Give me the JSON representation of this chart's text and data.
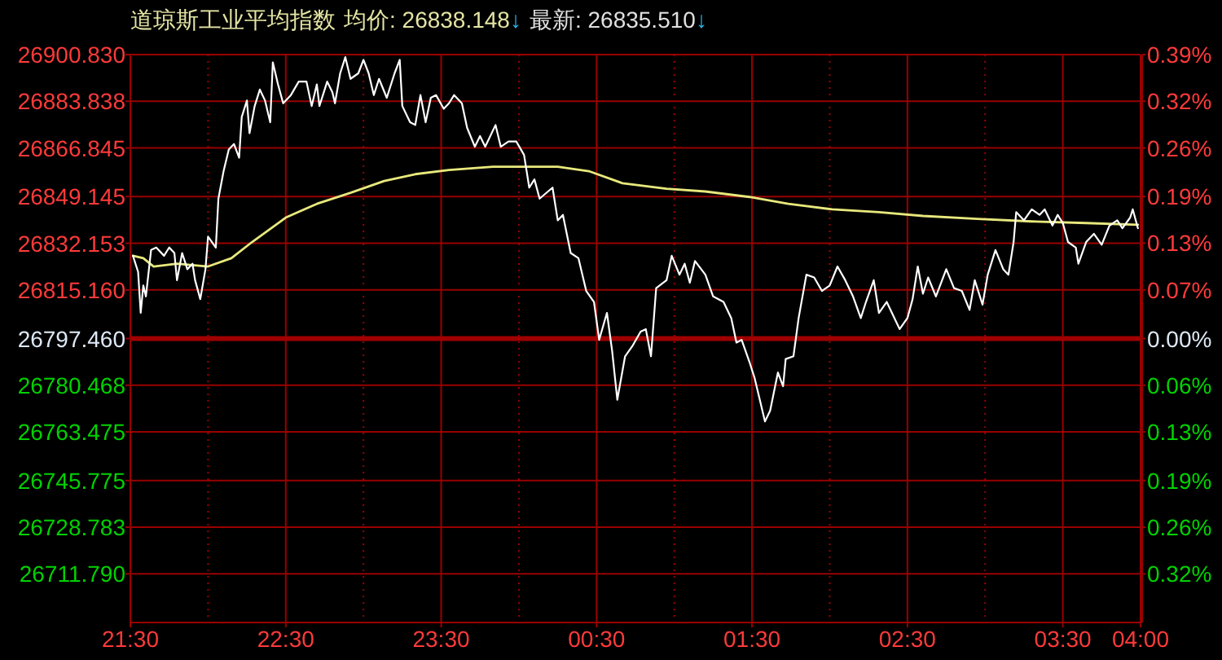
{
  "chart_data": {
    "type": "line",
    "title": "道琼斯工业平均指数",
    "annotations": [
      "均价: 26838.148↓",
      "最新: 26835.510↓"
    ],
    "series": [
      {
        "color": "#ffffff",
        "x": [
          "--01-01T21:31",
          "--01-01T21:33",
          "--01-01T21:34",
          "--01-01T21:35",
          "--01-01T21:36",
          "--01-01T21:38",
          "--01-01T21:40",
          "--01-01T21:43",
          "--01-01T21:45",
          "--01-01T21:47",
          "--01-01T21:48",
          "--01-01T21:50",
          "--01-01T21:52",
          "--01-01T21:54",
          "--01-01T21:55",
          "--01-01T21:57",
          "--01-01T21:59",
          "--01-01T22:00",
          "--01-01T22:03",
          "--01-01T22:04",
          "--01-01T22:06",
          "--01-01T22:08",
          "--01-01T22:10",
          "--01-01T22:12",
          "--01-01T22:13",
          "--01-01T22:15",
          "--01-01T22:16",
          "--01-01T22:18",
          "--01-01T22:20",
          "--01-01T22:22",
          "--01-01T22:24",
          "--01-01T22:25",
          "--01-01T22:27",
          "--01-01T22:29",
          "--01-01T22:32",
          "--01-01T22:35",
          "--01-01T22:38",
          "--01-01T22:40",
          "--01-01T22:42",
          "--01-01T22:43",
          "--01-01T22:46",
          "--01-01T22:48",
          "--01-01T22:49",
          "--01-01T22:51",
          "--01-01T22:53",
          "--01-01T22:55",
          "--01-01T22:58",
          "--01-01T23:00",
          "--01-01T23:02",
          "--01-01T23:04",
          "--01-01T23:06",
          "--01-01T23:09",
          "--01-01T23:12",
          "--01-01T23:14",
          "--01-01T23:15",
          "--01-01T23:18",
          "--01-01T23:20",
          "--01-01T23:22",
          "--01-01T23:24",
          "--01-01T23:26",
          "--01-01T23:28",
          "--01-01T23:31",
          "--01-01T23:33",
          "--01-01T23:35",
          "--01-01T23:38",
          "--01-01T23:40",
          "--01-01T23:43",
          "--01-01T23:45",
          "--01-01T23:47",
          "--01-01T23:51",
          "--01-01T23:53",
          "--01-01T23:56",
          "--01-01T23:59",
          "--01-02T00:02",
          "--01-02T00:04",
          "--01-02T00:06",
          "--01-02T00:08",
          "--01-02T00:13",
          "--01-02T00:15",
          "--01-02T00:17",
          "--01-02T00:20",
          "--01-02T00:23",
          "--01-02T00:26",
          "--01-02T00:29",
          "--01-02T00:31",
          "--01-02T00:34",
          "--01-02T00:36",
          "--01-02T00:38",
          "--01-02T00:41",
          "--01-02T00:44",
          "--01-02T00:47",
          "--01-02T00:49",
          "--01-02T00:51",
          "--01-02T00:53",
          "--01-02T00:57",
          "--01-02T00:59",
          "--01-02T01:02",
          "--01-02T01:04",
          "--01-02T01:06",
          "--01-02T01:08",
          "--01-02T01:12",
          "--01-02T01:15",
          "--01-02T01:19",
          "--01-02T01:22",
          "--01-02T01:24",
          "--01-02T01:26",
          "--01-02T01:29",
          "--01-02T01:31",
          "--01-02T01:33",
          "--01-02T01:35",
          "--01-02T01:37",
          "--01-02T01:40",
          "--01-02T01:42",
          "--01-02T01:43",
          "--01-02T01:46",
          "--01-02T01:48",
          "--01-02T01:51",
          "--01-02T01:54",
          "--01-02T01:57",
          "--01-02T02:00",
          "--01-02T02:03",
          "--01-02T02:06",
          "--01-02T02:09",
          "--01-02T02:12",
          "--01-02T02:14",
          "--01-02T02:17",
          "--01-02T02:19",
          "--01-02T02:22",
          "--01-02T02:25",
          "--01-02T02:27",
          "--01-02T02:30",
          "--01-02T02:32",
          "--01-02T02:34",
          "--01-02T02:36",
          "--01-02T02:38",
          "--01-02T02:41",
          "--01-02T02:45",
          "--01-02T02:48",
          "--01-02T02:51",
          "--01-02T02:54",
          "--01-02T02:56",
          "--01-02T02:59",
          "--01-02T03:01",
          "--01-02T03:04",
          "--01-02T03:07",
          "--01-02T03:09",
          "--01-02T03:11",
          "--01-02T03:12",
          "--01-02T03:15",
          "--01-02T03:18",
          "--01-02T03:21",
          "--01-02T03:23",
          "--01-02T03:26",
          "--01-02T03:28",
          "--01-02T03:30",
          "--01-02T03:32",
          "--01-02T03:35",
          "--01-02T03:36",
          "--01-02T03:39",
          "--01-02T03:42",
          "--01-02T03:45",
          "--01-02T03:48",
          "--01-02T03:51",
          "--01-02T03:53",
          "--01-02T03:56",
          "--01-02T03:57",
          "--01-02T03:59"
        ],
        "values": [
          26827.6,
          26821.7,
          26806.8,
          26816.8,
          26812.8,
          26829.7,
          26830.6,
          26827.6,
          26830.6,
          26828.6,
          26818.7,
          26828.6,
          26822.7,
          26824.7,
          26818.7,
          26811.8,
          26822.7,
          26834.6,
          26830.6,
          26848.4,
          26858.4,
          26866.3,
          26868.3,
          26863.3,
          26878.1,
          26884.1,
          26872.2,
          26882.1,
          26888.1,
          26884.1,
          26876.2,
          26898.0,
          26890.0,
          26883.1,
          26886.1,
          26891.0,
          26891.0,
          26882.1,
          26890.0,
          26882.1,
          26891.0,
          26887.1,
          26883.1,
          26894.0,
          26899.9,
          26892.0,
          26894.0,
          26898.9,
          26894.0,
          26886.1,
          26892.0,
          26885.1,
          26894.0,
          26898.9,
          26882.1,
          26876.2,
          26875.2,
          26886.1,
          26876.2,
          26885.1,
          26886.1,
          26881.1,
          26883.1,
          26886.1,
          26883.1,
          26874.2,
          26867.3,
          26871.2,
          26867.3,
          26875.2,
          26867.3,
          26869.2,
          26869.2,
          26864.3,
          26852.4,
          26855.4,
          26848.4,
          26852.4,
          26840.5,
          26842.5,
          26828.6,
          26826.7,
          26814.8,
          26810.8,
          26797.0,
          26806.8,
          26793.0,
          26775.2,
          26791.0,
          26795.0,
          26800.0,
          26800.9,
          26791.0,
          26815.8,
          26818.7,
          26827.6,
          26820.7,
          26824.7,
          26817.8,
          26825.7,
          26820.7,
          26812.8,
          26810.8,
          26804.9,
          26796.0,
          26797.0,
          26789.0,
          26783.1,
          26775.2,
          26767.3,
          26771.2,
          26785.1,
          26780.1,
          26790.0,
          26791.0,
          26804.9,
          26820.7,
          26819.7,
          26814.8,
          26816.8,
          26823.7,
          26818.7,
          26812.8,
          26804.9,
          26810.8,
          26818.7,
          26806.8,
          26810.8,
          26804.9,
          26800.9,
          26804.9,
          26811.8,
          26823.7,
          26813.8,
          26819.7,
          26812.8,
          26822.7,
          26815.8,
          26814.8,
          26807.9,
          26818.7,
          26809.8,
          26820.7,
          26829.7,
          26822.7,
          26820.7,
          26832.6,
          26843.5,
          26840.5,
          26844.5,
          26842.5,
          26844.5,
          26838.6,
          26842.5,
          26839.5,
          26832.6,
          26830.6,
          26824.7,
          26832.6,
          26835.6,
          26831.6,
          26838.6,
          26840.5,
          26837.6,
          26841.5,
          26844.5,
          26837.6
        ]
      },
      {
        "color": "#e8e87c",
        "x": [
          "--01-01T21:31",
          "--01-01T21:35",
          "--01-01T21:39",
          "--01-01T21:48",
          "--01-01T22:00",
          "--01-01T22:09",
          "--01-01T22:17",
          "--01-01T22:30",
          "--01-01T22:42",
          "--01-01T22:55",
          "--01-01T23:08",
          "--01-01T23:20",
          "--01-01T23:33",
          "--01-01T23:50",
          "--01-02T00:15",
          "--01-02T00:27",
          "--01-02T00:40",
          "--01-02T00:57",
          "--01-02T01:12",
          "--01-02T01:29",
          "--01-02T01:44",
          "--01-02T02:01",
          "--01-02T02:19",
          "--01-02T02:36",
          "--01-02T02:57",
          "--01-02T03:18",
          "--01-02T03:39",
          "--01-02T03:59"
        ],
        "values": [
          26827.6,
          26826.7,
          26823.7,
          26824.7,
          26823.7,
          26826.7,
          26832.6,
          26841.5,
          26846.5,
          26850.5,
          26854.8,
          26857.3,
          26858.8,
          26860.0,
          26860.0,
          26858.4,
          26854.0,
          26852.0,
          26851.0,
          26849.0,
          26846.5,
          26844.5,
          26843.5,
          26842.1,
          26841.0,
          26840.1,
          26839.5,
          26838.9
        ]
      }
    ],
    "xlim": [
      "--01-01T21:30",
      "--01-02T04:00"
    ],
    "xticks": [
      {
        "value": "--01-01T21:30",
        "label": "21:30"
      },
      {
        "value": "--01-01T22:00",
        "label": null
      },
      {
        "value": "--01-01T22:30",
        "label": "22:30"
      },
      {
        "value": "--01-01T23:00",
        "label": null
      },
      {
        "value": "--01-01T23:30",
        "label": "23:30"
      },
      {
        "value": "--01-02T00:00",
        "label": null
      },
      {
        "value": "--01-02T00:30",
        "label": "00:30"
      },
      {
        "value": "--01-02T01:00",
        "label": null
      },
      {
        "value": "--01-02T01:30",
        "label": "01:30"
      },
      {
        "value": "--01-02T02:00",
        "label": null
      },
      {
        "value": "--01-02T02:30",
        "label": "02:30"
      },
      {
        "value": "--01-02T03:00",
        "label": null
      },
      {
        "value": "--01-02T03:30",
        "label": "03:30"
      },
      {
        "value": "--01-02T04:00",
        "label": "04:00"
      }
    ],
    "ylim": [
      26694.09,
      26900.83
    ],
    "yticks": [
      {
        "value": 26900.83,
        "label": "26900.830"
      },
      {
        "value": 26883.838,
        "label": "26883.838"
      },
      {
        "value": 26866.845,
        "label": "26866.845"
      },
      {
        "value": 26849.145,
        "label": "26849.145"
      },
      {
        "value": 26832.153,
        "label": "26832.153"
      },
      {
        "value": 26815.16,
        "label": "26815.160"
      },
      {
        "value": 26797.46,
        "label": "26797.460"
      },
      {
        "value": 26780.468,
        "label": "26780.468"
      },
      {
        "value": 26763.475,
        "label": "26763.475"
      },
      {
        "value": 26745.775,
        "label": "26745.775"
      },
      {
        "value": 26728.783,
        "label": "26728.783"
      },
      {
        "value": 26711.79,
        "label": "26711.790"
      }
    ],
    "y2lim": [
      -0.3857,
      0.3857
    ],
    "y2ticks": [
      {
        "value": 0.3857,
        "label": "0.39%"
      },
      {
        "value": 0.3223,
        "label": "0.32%"
      },
      {
        "value": 0.2589,
        "label": "0.26%"
      },
      {
        "value": 0.1929,
        "label": "0.19%"
      },
      {
        "value": 0.1295,
        "label": "0.13%"
      },
      {
        "value": 0.0661,
        "label": "0.07%"
      },
      {
        "value": 0,
        "label": "0.00%"
      },
      {
        "value": -0.0634,
        "label": "0.06%"
      },
      {
        "value": -0.1268,
        "label": "0.13%"
      },
      {
        "value": -0.1929,
        "label": "0.19%"
      },
      {
        "value": -0.2563,
        "label": "0.26%"
      },
      {
        "value": -0.3197,
        "label": "0.32%"
      }
    ],
    "ref_lines": [
      {
        "axis": "y",
        "value": 26797.46,
        "color": "#a00000"
      }
    ],
    "grid": true
  }
}
